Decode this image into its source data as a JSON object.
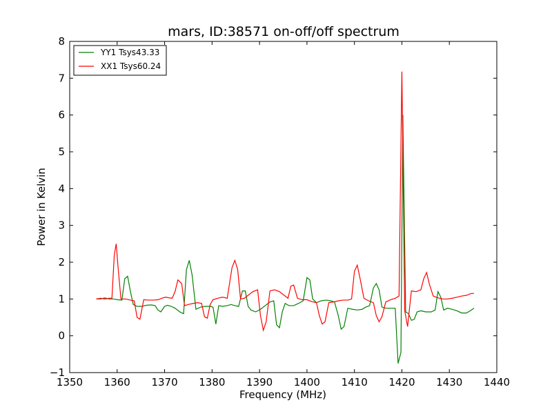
{
  "chart_data": {
    "type": "line",
    "title": "mars, ID:38571 on-off/off spectrum",
    "xlabel": "Frequency (MHz)",
    "ylabel": "Power in Kelvin",
    "xlim": [
      1350,
      1440
    ],
    "ylim": [
      -1,
      8
    ],
    "xticks": [
      1350,
      1360,
      1370,
      1380,
      1390,
      1400,
      1410,
      1420,
      1430,
      1440
    ],
    "yticks": [
      -1,
      0,
      1,
      2,
      3,
      4,
      5,
      6,
      7,
      8
    ],
    "grid": false,
    "legend_position": "top-left",
    "series": [
      {
        "name": "YY1 Tsys43.33",
        "color": "#008000",
        "x": [
          1355.6,
          1356.5,
          1357.4,
          1358.3,
          1359.2,
          1360.1,
          1361.0,
          1361.6,
          1362.2,
          1362.8,
          1363.4,
          1364.2,
          1365.2,
          1366.2,
          1367.2,
          1368.0,
          1368.6,
          1369.2,
          1370.0,
          1370.6,
          1371.4,
          1372.2,
          1373.2,
          1374.0,
          1374.6,
          1375.2,
          1375.8,
          1376.6,
          1377.6,
          1378.6,
          1379.6,
          1380.2,
          1380.8,
          1381.4,
          1382.2,
          1383.2,
          1384.0,
          1384.8,
          1385.6,
          1386.4,
          1387.0,
          1387.6,
          1388.2,
          1389.2,
          1390.2,
          1391.2,
          1392.2,
          1393.0,
          1393.6,
          1394.2,
          1394.8,
          1395.4,
          1396.2,
          1397.2,
          1398.2,
          1399.2,
          1400.0,
          1400.6,
          1401.2,
          1402.0,
          1403.0,
          1404.0,
          1405.0,
          1405.8,
          1406.6,
          1407.2,
          1407.8,
          1408.6,
          1409.6,
          1410.6,
          1411.6,
          1412.4,
          1413.2,
          1414.0,
          1414.6,
          1415.2,
          1415.8,
          1416.6,
          1417.6,
          1418.6,
          1419.2,
          1419.8,
          1420.2,
          1420.8,
          1421.4,
          1422.0,
          1422.6,
          1423.2,
          1424.0,
          1425.0,
          1426.2,
          1427.0,
          1427.6,
          1428.2,
          1428.8,
          1429.6,
          1430.6,
          1431.6,
          1432.6,
          1433.6,
          1434.4,
          1435.2
        ],
        "y": [
          1.0,
          1.0,
          1.03,
          1.0,
          1.0,
          0.98,
          0.97,
          1.55,
          1.62,
          1.2,
          0.85,
          0.8,
          0.8,
          0.83,
          0.84,
          0.82,
          0.7,
          0.65,
          0.8,
          0.83,
          0.8,
          0.75,
          0.65,
          0.6,
          1.8,
          2.05,
          1.65,
          0.72,
          0.78,
          0.8,
          0.8,
          0.78,
          0.32,
          0.82,
          0.8,
          0.82,
          0.85,
          0.82,
          0.8,
          1.22,
          1.22,
          0.8,
          0.7,
          0.65,
          0.72,
          0.82,
          0.92,
          0.95,
          0.3,
          0.22,
          0.65,
          0.88,
          0.82,
          0.82,
          0.88,
          0.95,
          1.58,
          1.52,
          1.0,
          0.9,
          0.95,
          0.97,
          0.95,
          0.92,
          0.55,
          0.18,
          0.25,
          0.75,
          0.72,
          0.7,
          0.72,
          0.78,
          0.82,
          1.3,
          1.42,
          1.25,
          0.78,
          0.75,
          0.75,
          0.75,
          -0.75,
          -0.45,
          6.0,
          0.65,
          0.6,
          0.42,
          0.45,
          0.65,
          0.68,
          0.65,
          0.65,
          0.7,
          1.2,
          1.05,
          0.7,
          0.75,
          0.72,
          0.68,
          0.62,
          0.62,
          0.68,
          0.75
        ]
      },
      {
        "name": "XX1 Tsys60.24",
        "color": "#ff0000",
        "x": [
          1355.6,
          1356.5,
          1357.4,
          1358.3,
          1358.9,
          1359.4,
          1359.8,
          1360.2,
          1360.8,
          1361.8,
          1362.8,
          1363.6,
          1364.2,
          1364.8,
          1365.6,
          1366.6,
          1367.6,
          1368.6,
          1369.4,
          1370.2,
          1371.0,
          1371.6,
          1372.2,
          1372.8,
          1373.6,
          1374.2,
          1375.0,
          1376.0,
          1377.0,
          1377.8,
          1378.4,
          1379.0,
          1379.6,
          1380.2,
          1381.2,
          1382.2,
          1383.2,
          1384.2,
          1384.8,
          1385.4,
          1386.0,
          1386.8,
          1387.6,
          1388.6,
          1389.6,
          1390.2,
          1390.8,
          1391.4,
          1392.2,
          1393.2,
          1394.2,
          1395.2,
          1396.0,
          1396.6,
          1397.2,
          1398.0,
          1399.0,
          1400.0,
          1401.0,
          1402.0,
          1402.6,
          1403.2,
          1403.8,
          1404.6,
          1405.6,
          1406.6,
          1407.6,
          1408.6,
          1409.4,
          1410.0,
          1410.6,
          1411.2,
          1412.0,
          1413.0,
          1414.0,
          1414.6,
          1415.2,
          1415.8,
          1416.6,
          1417.6,
          1418.6,
          1419.4,
          1420.0,
          1420.6,
          1421.2,
          1422.0,
          1423.0,
          1424.0,
          1424.6,
          1425.2,
          1425.8,
          1426.6,
          1427.6,
          1428.6,
          1429.6,
          1430.6,
          1431.6,
          1432.6,
          1433.6,
          1434.6,
          1435.2
        ],
        "y": [
          1.0,
          1.02,
          1.0,
          1.02,
          1.02,
          2.2,
          2.5,
          1.85,
          1.0,
          1.0,
          0.97,
          0.95,
          0.5,
          0.45,
          0.98,
          0.97,
          0.97,
          0.98,
          1.02,
          1.05,
          1.03,
          1.02,
          1.2,
          1.52,
          1.42,
          0.82,
          0.85,
          0.88,
          0.9,
          0.88,
          0.52,
          0.48,
          0.85,
          0.98,
          1.02,
          1.05,
          1.02,
          1.85,
          2.05,
          1.8,
          1.0,
          1.02,
          1.1,
          1.2,
          1.25,
          0.55,
          0.15,
          0.38,
          1.22,
          1.25,
          1.2,
          1.1,
          1.02,
          1.35,
          1.38,
          1.02,
          0.98,
          0.98,
          0.93,
          0.9,
          0.55,
          0.32,
          0.38,
          0.9,
          0.92,
          0.95,
          0.97,
          0.97,
          1.0,
          1.75,
          1.92,
          1.55,
          1.02,
          0.95,
          0.9,
          0.55,
          0.38,
          0.52,
          0.92,
          0.98,
          1.02,
          1.08,
          7.18,
          0.68,
          0.25,
          1.22,
          1.2,
          1.25,
          1.55,
          1.72,
          1.4,
          1.08,
          1.03,
          1.0,
          1.0,
          1.02,
          1.05,
          1.08,
          1.1,
          1.15,
          1.15
        ]
      }
    ]
  }
}
